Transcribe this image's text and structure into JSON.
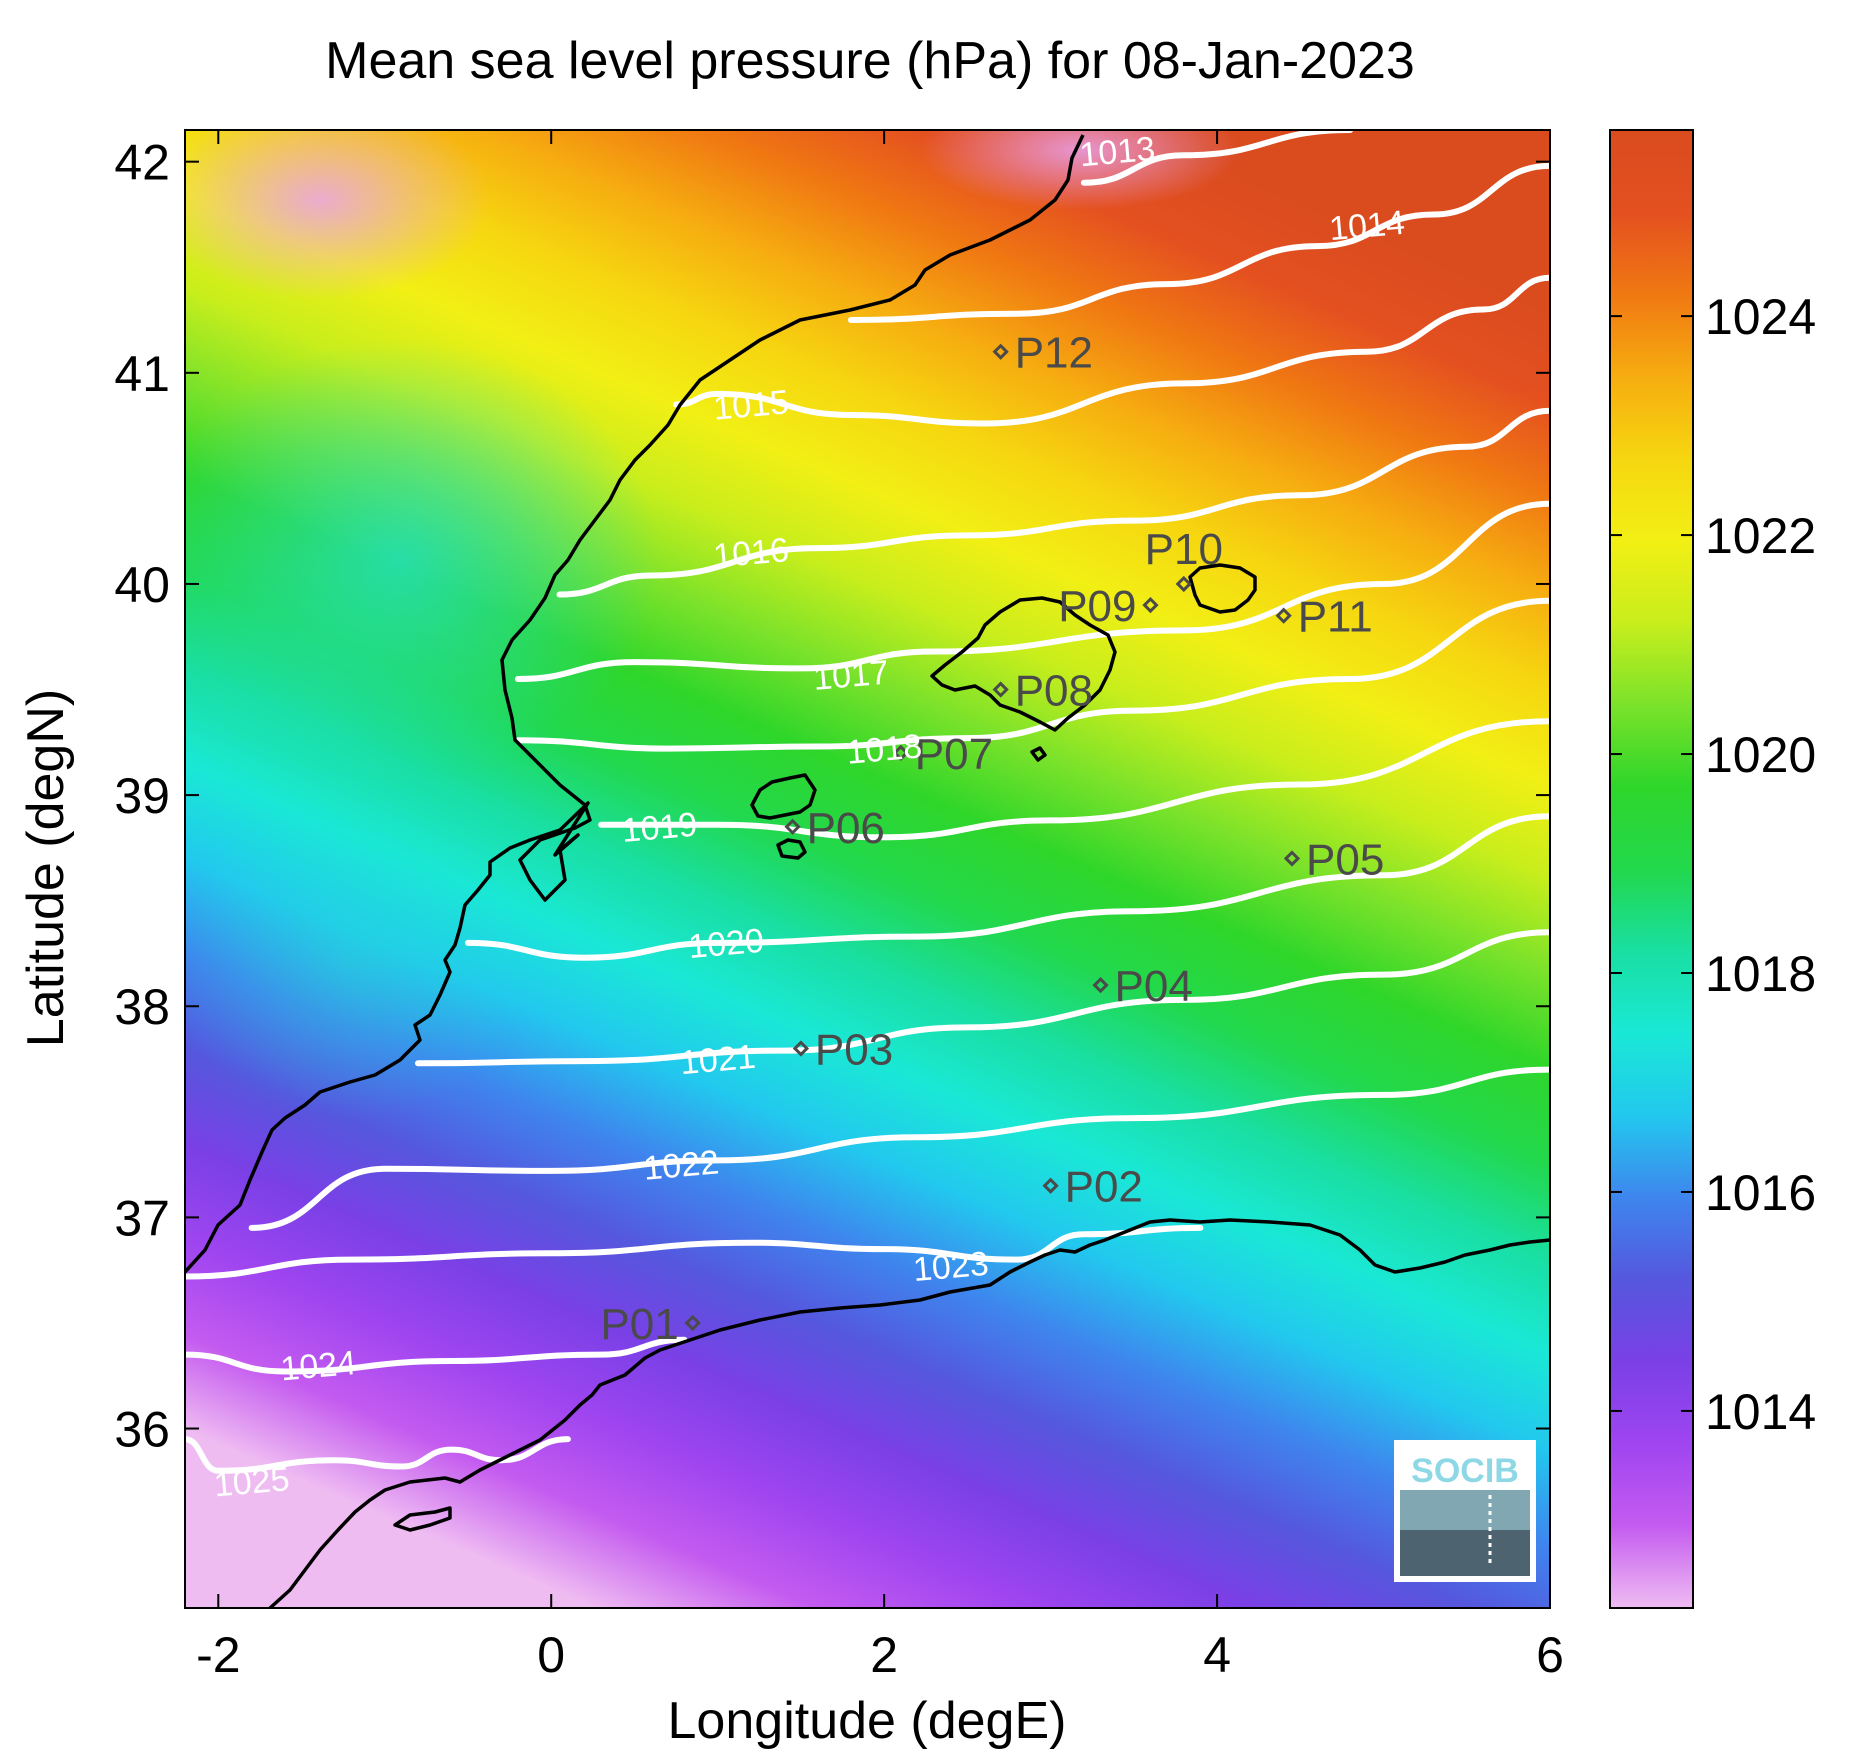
{
  "title": "Mean sea level pressure (hPa) for 08-Jan-2023",
  "xlabel": "Longitude (degE)",
  "ylabel": "Latitude (degN)",
  "xlim": [
    -2.2,
    6.0
  ],
  "ylim": [
    35.15,
    42.15
  ],
  "xticks": [
    -2,
    0,
    2,
    4,
    6
  ],
  "yticks": [
    36,
    37,
    38,
    39,
    40,
    41,
    42
  ],
  "colorbar": {
    "range": [
      1012.2,
      1025.7
    ],
    "ticks": [
      1014,
      1016,
      1018,
      1020,
      1022,
      1024
    ],
    "colors": [
      "#efbcf2",
      "#c45bf0",
      "#9f45f0",
      "#7a40e6",
      "#5557de",
      "#3e86ee",
      "#22c8ee",
      "#1ae8d6",
      "#19dfa2",
      "#22d84c",
      "#2fd62a",
      "#7be22a",
      "#c8ee1c",
      "#f2ef14",
      "#f6d610",
      "#f6ad10",
      "#f07812",
      "#e45020",
      "#da4b1e"
    ]
  },
  "logo": {
    "text": "SOCIB"
  },
  "map_data": {
    "type": "filled_contour_map",
    "variable": "Mean sea level pressure",
    "units": "hPa",
    "date": "08-Jan-2023",
    "contours": [
      {
        "level": 1013,
        "label": "1013",
        "label_at": [
          3.4,
          42.05
        ],
        "points": [
          [
            3.2,
            41.9
          ],
          [
            3.8,
            42.03
          ],
          [
            4.8,
            42.15
          ]
        ]
      },
      {
        "level": 1014,
        "label": "1014",
        "label_at": [
          4.9,
          41.7
        ],
        "points": [
          [
            1.8,
            41.25
          ],
          [
            2.8,
            41.28
          ],
          [
            3.7,
            41.42
          ],
          [
            4.6,
            41.6
          ],
          [
            5.3,
            41.75
          ],
          [
            6.0,
            41.98
          ]
        ]
      },
      {
        "level": 1015,
        "label": "1015",
        "label_at": [
          1.2,
          40.85
        ],
        "points": [
          [
            0.75,
            40.85
          ],
          [
            1.0,
            40.9
          ],
          [
            1.8,
            40.8
          ],
          [
            2.6,
            40.76
          ],
          [
            3.8,
            40.95
          ],
          [
            4.9,
            41.1
          ],
          [
            5.6,
            41.3
          ],
          [
            6.0,
            41.45
          ]
        ]
      },
      {
        "level": 1016,
        "label": "1016",
        "label_at": [
          1.2,
          40.15
        ],
        "points": [
          [
            0.05,
            39.95
          ],
          [
            0.6,
            40.04
          ],
          [
            1.6,
            40.17
          ],
          [
            2.5,
            40.23
          ],
          [
            3.5,
            40.3
          ],
          [
            4.5,
            40.42
          ],
          [
            5.5,
            40.65
          ],
          [
            6.0,
            40.82
          ]
        ]
      },
      {
        "level": 1017,
        "label": "1017",
        "label_at": [
          1.8,
          39.57
        ],
        "points": [
          [
            -0.2,
            39.55
          ],
          [
            0.5,
            39.63
          ],
          [
            1.5,
            39.6
          ],
          [
            2.3,
            39.68
          ],
          [
            3.8,
            39.78
          ],
          [
            5.0,
            40.0
          ],
          [
            6.0,
            40.38
          ]
        ]
      },
      {
        "level": 1018,
        "label": "1018",
        "label_at": [
          2.0,
          39.22
        ],
        "points": [
          [
            -0.2,
            39.26
          ],
          [
            0.7,
            39.22
          ],
          [
            1.6,
            39.23
          ],
          [
            2.5,
            39.27
          ],
          [
            3.5,
            39.4
          ],
          [
            4.8,
            39.55
          ],
          [
            6.0,
            39.92
          ]
        ]
      },
      {
        "level": 1019,
        "label": "1019",
        "label_at": [
          0.65,
          38.85
        ],
        "points": [
          [
            0.3,
            38.86
          ],
          [
            1.0,
            38.86
          ],
          [
            2.0,
            38.8
          ],
          [
            3.0,
            38.88
          ],
          [
            4.5,
            39.05
          ],
          [
            6.0,
            39.35
          ]
        ]
      },
      {
        "level": 1020,
        "label": "1020",
        "label_at": [
          1.05,
          38.3
        ],
        "points": [
          [
            -0.5,
            38.3
          ],
          [
            0.2,
            38.23
          ],
          [
            1.0,
            38.3
          ],
          [
            2.2,
            38.33
          ],
          [
            3.5,
            38.45
          ],
          [
            5.0,
            38.62
          ],
          [
            6.0,
            38.9
          ]
        ]
      },
      {
        "level": 1021,
        "label": "1021",
        "label_at": [
          1.0,
          37.75
        ],
        "points": [
          [
            -0.8,
            37.73
          ],
          [
            0.2,
            37.74
          ],
          [
            1.4,
            37.79
          ],
          [
            2.5,
            37.9
          ],
          [
            3.8,
            38.03
          ],
          [
            5.0,
            38.15
          ],
          [
            6.0,
            38.35
          ]
        ]
      },
      {
        "level": 1022,
        "label": "1022",
        "label_at": [
          0.78,
          37.25
        ],
        "points": [
          [
            -1.8,
            36.95
          ],
          [
            -1.0,
            37.23
          ],
          [
            0.0,
            37.22
          ],
          [
            1.0,
            37.27
          ],
          [
            2.2,
            37.38
          ],
          [
            3.5,
            37.47
          ],
          [
            5.0,
            37.58
          ],
          [
            6.0,
            37.7
          ]
        ]
      },
      {
        "level": 1023,
        "label": "1023",
        "label_at": [
          2.4,
          36.77
        ],
        "points": [
          [
            -2.2,
            36.72
          ],
          [
            -1.2,
            36.8
          ],
          [
            0.0,
            36.83
          ],
          [
            1.2,
            36.88
          ],
          [
            2.0,
            36.85
          ],
          [
            2.8,
            36.8
          ],
          [
            3.2,
            36.92
          ],
          [
            3.9,
            36.95
          ]
        ]
      },
      {
        "level": 1024,
        "label": "1024",
        "label_at": [
          -1.4,
          36.3
        ],
        "points": [
          [
            -2.2,
            36.35
          ],
          [
            -1.6,
            36.27
          ],
          [
            -0.6,
            36.32
          ],
          [
            0.3,
            36.35
          ],
          [
            0.8,
            36.42
          ]
        ]
      },
      {
        "level": 1025,
        "label": "1025",
        "label_at": [
          -1.8,
          35.75
        ],
        "points": [
          [
            -2.2,
            35.95
          ],
          [
            -2.0,
            35.8
          ],
          [
            -1.3,
            35.85
          ],
          [
            -0.9,
            35.82
          ],
          [
            -0.6,
            35.9
          ],
          [
            -0.3,
            35.85
          ],
          [
            0.1,
            35.95
          ]
        ]
      }
    ],
    "stations": [
      {
        "label": "P01",
        "lon": 0.85,
        "lat": 36.5,
        "label_side": "left"
      },
      {
        "label": "P02",
        "lon": 3.0,
        "lat": 37.15,
        "label_side": "right"
      },
      {
        "label": "P03",
        "lon": 1.5,
        "lat": 37.8,
        "label_side": "right"
      },
      {
        "label": "P04",
        "lon": 3.3,
        "lat": 38.1,
        "label_side": "right"
      },
      {
        "label": "P05",
        "lon": 4.45,
        "lat": 38.7,
        "label_side": "right"
      },
      {
        "label": "P06",
        "lon": 1.45,
        "lat": 38.85,
        "label_side": "right"
      },
      {
        "label": "P07",
        "lon": 2.1,
        "lat": 39.2,
        "label_side": "right"
      },
      {
        "label": "P08",
        "lon": 2.7,
        "lat": 39.5,
        "label_side": "right"
      },
      {
        "label": "P09",
        "lon": 3.6,
        "lat": 39.9,
        "label_side": "left"
      },
      {
        "label": "P10",
        "lon": 3.8,
        "lat": 40.0,
        "label_side": "above"
      },
      {
        "label": "P11",
        "lon": 4.4,
        "lat": 39.85,
        "label_side": "right"
      },
      {
        "label": "P12",
        "lon": 2.7,
        "lat": 41.1,
        "label_side": "right"
      }
    ]
  }
}
